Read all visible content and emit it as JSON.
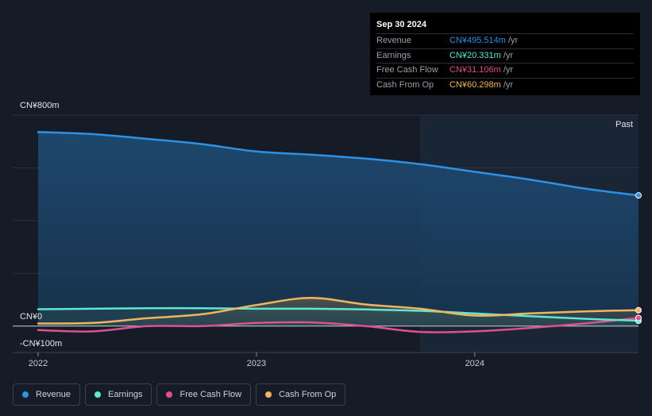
{
  "tooltip": {
    "date": "Sep 30 2024",
    "rows": [
      {
        "label": "Revenue",
        "value": "CN¥495.514m",
        "unit": "/yr",
        "color": "#2e91e5"
      },
      {
        "label": "Earnings",
        "value": "CN¥20.331m",
        "unit": "/yr",
        "color": "#5ee8d1"
      },
      {
        "label": "Free Cash Flow",
        "value": "CN¥31.106m",
        "unit": "/yr",
        "color": "#e0508e"
      },
      {
        "label": "Cash From Op",
        "value": "CN¥60.298m",
        "unit": "/yr",
        "color": "#f2b55f"
      }
    ]
  },
  "past_label": "Past",
  "legend": [
    {
      "label": "Revenue",
      "color": "#2e91e5"
    },
    {
      "label": "Earnings",
      "color": "#5ee8d1"
    },
    {
      "label": "Free Cash Flow",
      "color": "#e0508e"
    },
    {
      "label": "Cash From Op",
      "color": "#f2b55f"
    }
  ],
  "chart_data": {
    "type": "line",
    "ylim": [
      -100,
      800
    ],
    "y_tick_labels": [
      {
        "value": 800,
        "label": "CN¥800m"
      },
      {
        "value": 0,
        "label": "CN¥0"
      },
      {
        "value": -100,
        "label": "-CN¥100m"
      }
    ],
    "x_tick_labels": [
      {
        "value": 2022.0,
        "label": "2022"
      },
      {
        "value": 2023.0,
        "label": "2023"
      },
      {
        "value": 2024.0,
        "label": "2024"
      }
    ],
    "x_range": [
      2022.0,
      2024.75
    ],
    "past_start": 2023.75,
    "series": [
      {
        "name": "Revenue",
        "color": "#2e91e5",
        "area": true,
        "x": [
          2022.0,
          2022.25,
          2022.5,
          2022.75,
          2023.0,
          2023.25,
          2023.5,
          2023.75,
          2024.0,
          2024.25,
          2024.5,
          2024.75
        ],
        "y": [
          736,
          728,
          710,
          690,
          662,
          650,
          635,
          614,
          585,
          556,
          522,
          495.514
        ]
      },
      {
        "name": "Earnings",
        "color": "#5ee8d1",
        "x": [
          2022.0,
          2022.25,
          2022.5,
          2022.75,
          2023.0,
          2023.25,
          2023.5,
          2023.75,
          2024.0,
          2024.25,
          2024.5,
          2024.75
        ],
        "y": [
          64,
          66,
          68,
          68,
          66,
          66,
          63,
          58,
          48,
          38,
          28,
          20.331
        ]
      },
      {
        "name": "Free Cash Flow",
        "color": "#e0508e",
        "x": [
          2022.0,
          2022.25,
          2022.5,
          2022.75,
          2023.0,
          2023.25,
          2023.5,
          2023.75,
          2024.0,
          2024.25,
          2024.5,
          2024.75
        ],
        "y": [
          -15,
          -20,
          0,
          0,
          12,
          14,
          0,
          -22,
          -20,
          -7,
          10,
          31.106
        ]
      },
      {
        "name": "Cash From Op",
        "color": "#f2b55f",
        "x": [
          2022.0,
          2022.25,
          2022.5,
          2022.75,
          2023.0,
          2023.25,
          2023.5,
          2023.75,
          2024.0,
          2024.25,
          2024.5,
          2024.75
        ],
        "y": [
          10,
          12,
          30,
          45,
          80,
          107,
          82,
          66,
          40,
          48,
          56,
          60.298
        ]
      }
    ]
  }
}
